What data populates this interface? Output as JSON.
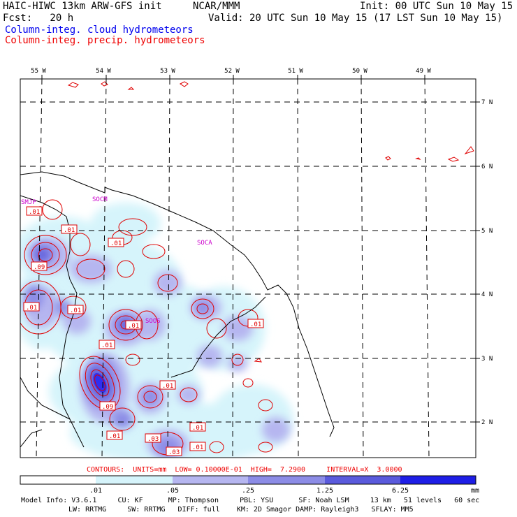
{
  "header": {
    "model": "HAIC-HIWC 13km ARW-GFS init",
    "org": "NCAR/MMM",
    "init": "Init: 00 UTC Sun 10 May 15",
    "fcst": "Fcst:   20 h",
    "valid": "Valid: 20 UTC Sun 10 May 15 (17 LST Sun 10 May 15)",
    "line_blue": "Column-integ. cloud hydrometeors",
    "line_red": "Column-integ. precip. hydrometeors"
  },
  "map": {
    "lon_labels": [
      "55 W",
      "54 W",
      "53 W",
      "52 W",
      "51 W",
      "50 W",
      "49 W"
    ],
    "lat_labels": [
      "7 N",
      "6 N",
      "5 N",
      "4 N",
      "3 N",
      "2 N"
    ],
    "stations": [
      "SMJP",
      "SOCM",
      "SOCA",
      "SOOS"
    ],
    "contour_labels": [
      ".01",
      ".01",
      ".01",
      ".09",
      ".01",
      ".01",
      ".01",
      ".01",
      ".01",
      ".01",
      ".09",
      ".01",
      ".03",
      ".01",
      ".01",
      ".03"
    ]
  },
  "contours_line": "CONTOURS:  UNITS=mm  LOW= 0.10000E-01  HIGH=  7.2900     INTERVAL=X  3.0000",
  "colorbar": {
    "ticks": [
      ".01",
      ".05",
      ".25",
      "1.25",
      "6.25"
    ],
    "unit": "mm",
    "colors": [
      "#ffffff",
      "#d6f4fb",
      "#b6b6f0",
      "#8c8ce6",
      "#5a5adc",
      "#2f2ff0",
      "#0000e6"
    ]
  },
  "footer": {
    "line1": "Model Info: V3.6.1     CU: KF      MP: Thompson     PBL: YSU      SF: Noah LSM     13 km   51 levels   60 sec",
    "line2": "LW: RRTMG     SW: RRTMG   DIFF: full    KM: 2D Smagor DAMP: Rayleigh3   SFLAY: MM5"
  }
}
